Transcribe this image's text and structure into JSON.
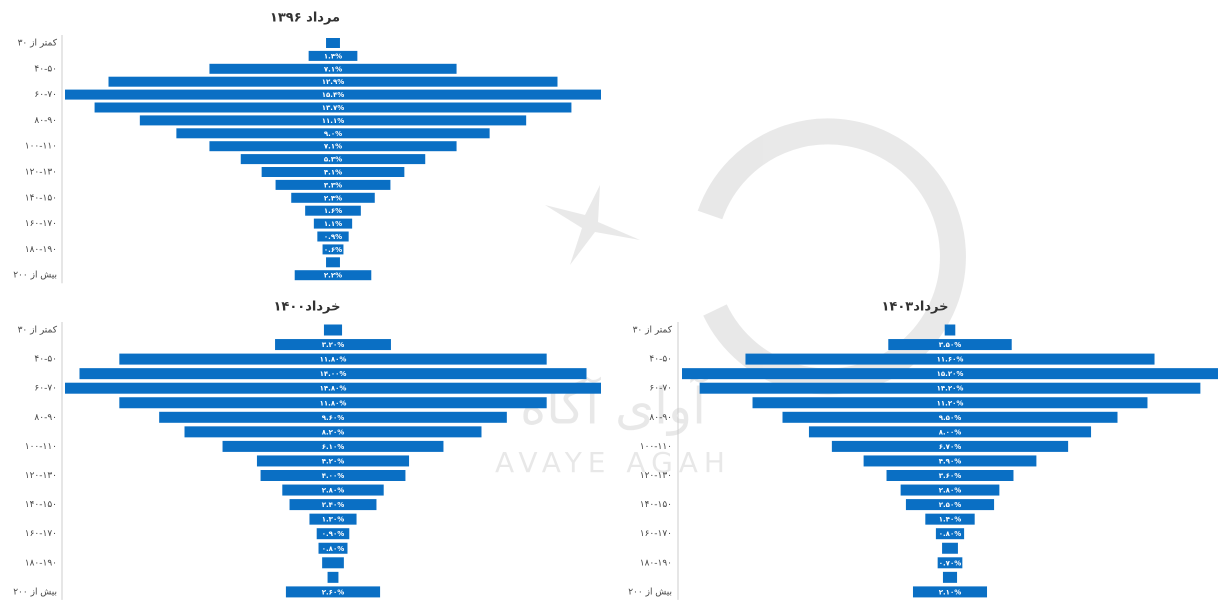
{
  "watermark": {
    "latin": "AVAYE AGAH",
    "persian": "آوای آگاه"
  },
  "chart_data": [
    {
      "type": "funnel",
      "title": "مرداد ۱۳۹۶",
      "color": "#0a6fc4",
      "categories": [
        "کمتر از ۳۰",
        null,
        "۴۰-۵۰",
        null,
        "۶۰-۷۰",
        null,
        "۸۰-۹۰",
        null,
        "۱۰۰-۱۱۰",
        null,
        "۱۲۰-۱۳۰",
        null,
        "۱۴۰-۱۵۰",
        null,
        "۱۶۰-۱۷۰",
        null,
        "۱۸۰-۱۹۰",
        null,
        "بیش از ۲۰۰"
      ],
      "values": [
        0.4,
        1.4,
        7.1,
        12.9,
        15.4,
        13.7,
        11.1,
        9.0,
        7.1,
        5.3,
        4.1,
        3.3,
        2.4,
        1.6,
        1.1,
        0.9,
        0.6,
        0.4,
        2.2
      ],
      "value_labels": [
        null,
        "۱.۴%",
        "۷.۱%",
        "۱۲.۹%",
        "۱۵.۴%",
        "۱۳.۷%",
        "۱۱.۱%",
        "۹.۰%",
        "۷.۱%",
        "۵.۳%",
        "۴.۱%",
        "۳.۳%",
        "۲.۴%",
        "۱.۶%",
        "۱.۱%",
        "۰.۹%",
        "۰.۶%",
        null,
        "۲.۲%"
      ]
    },
    {
      "type": "funnel",
      "title": "خرداد۱۴۰۰",
      "color": "#0a6fc4",
      "categories": [
        "کمتر از ۳۰",
        null,
        "۴۰-۵۰",
        null,
        "۶۰-۷۰",
        null,
        "۸۰-۹۰",
        null,
        "۱۰۰-۱۱۰",
        null,
        "۱۲۰-۱۳۰",
        null,
        "۱۴۰-۱۵۰",
        null,
        "۱۶۰-۱۷۰",
        null,
        "۱۸۰-۱۹۰",
        null,
        "بیش از ۲۰۰"
      ],
      "values": [
        0.5,
        3.2,
        11.8,
        14.0,
        14.8,
        11.8,
        9.6,
        8.2,
        6.1,
        4.2,
        4.0,
        2.8,
        2.4,
        1.3,
        0.9,
        0.8,
        0.6,
        0.3,
        2.6
      ],
      "value_labels": [
        null,
        "۳.۲۰%",
        "۱۱.۸۰%",
        "۱۴.۰۰%",
        "۱۴.۸۰%",
        "۱۱.۸۰%",
        "۹.۶۰%",
        "۸.۲۰%",
        "۶.۱۰%",
        "۴.۲۰%",
        "۴.۰۰%",
        "۲.۸۰%",
        "۲.۴۰%",
        "۱.۳۰%",
        "۰.۹۰%",
        "۰.۸۰%",
        null,
        null,
        "۲.۶۰%"
      ]
    },
    {
      "type": "funnel",
      "title": "خرداد۱۴۰۳",
      "color": "#0a6fc4",
      "categories": [
        "کمتر از ۳۰",
        null,
        "۴۰-۵۰",
        null,
        "۶۰-۷۰",
        null,
        "۸۰-۹۰",
        null,
        "۱۰۰-۱۱۰",
        null,
        "۱۲۰-۱۳۰",
        null,
        "۱۴۰-۱۵۰",
        null,
        "۱۶۰-۱۷۰",
        null,
        "۱۸۰-۱۹۰",
        null,
        "بیش از ۲۰۰"
      ],
      "values": [
        0.3,
        3.5,
        11.6,
        15.2,
        14.2,
        11.2,
        9.5,
        8.0,
        6.7,
        4.9,
        3.6,
        2.8,
        2.5,
        1.4,
        0.8,
        0.45,
        0.7,
        0.4,
        2.1
      ],
      "value_labels": [
        null,
        "۳.۵۰%",
        "۱۱.۶۰%",
        "۱۵.۲۰%",
        "۱۴.۲۰%",
        "۱۱.۲۰%",
        "۹.۵۰%",
        "۸.۰۰%",
        "۶.۷۰%",
        "۴.۹۰%",
        "۳.۶۰%",
        "۲.۸۰%",
        "۲.۵۰%",
        "۱.۴۰%",
        "۰.۸۰%",
        null,
        "۰.۷۰%",
        null,
        "۲.۱۰%"
      ]
    }
  ]
}
